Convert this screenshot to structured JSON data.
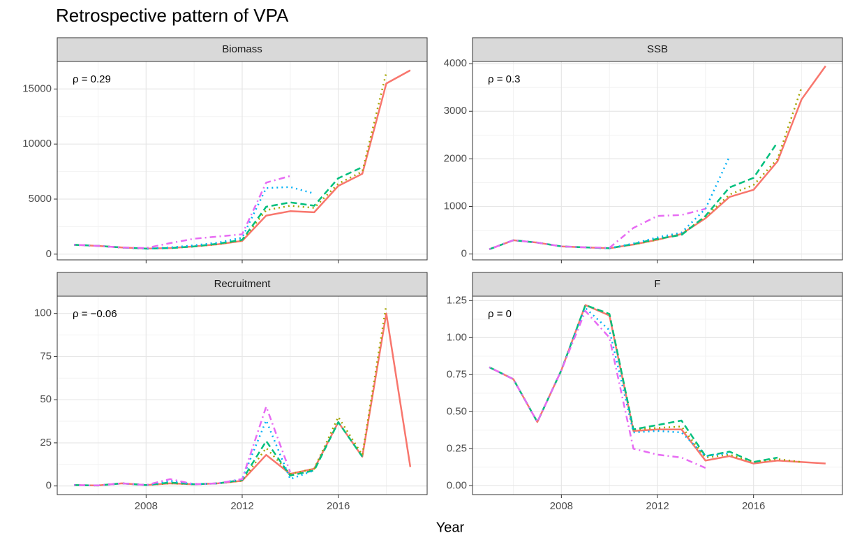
{
  "title": "Retrospective pattern of VPA",
  "xlabel": "Year",
  "chart_data": [
    {
      "type": "line",
      "title": "Biomass",
      "annotation": "ρ = 0.29",
      "x": [
        2005,
        2006,
        2007,
        2008,
        2009,
        2010,
        2011,
        2012,
        2013,
        2014,
        2015,
        2016,
        2017,
        2018,
        2019
      ],
      "xlim": [
        2004.3,
        2019.7
      ],
      "xticks": [
        2008,
        2012,
        2016
      ],
      "ylim": [
        -520,
        17500
      ],
      "yticks": [
        0,
        5000,
        10000,
        15000
      ],
      "series": [
        {
          "color": "#F8766D",
          "linetype": "solid",
          "values": [
            850,
            750,
            600,
            500,
            550,
            700,
            900,
            1200,
            3500,
            3900,
            3800,
            6200,
            7300,
            15500,
            16700
          ]
        },
        {
          "color": "#A3A500",
          "linetype": "dotted",
          "values": [
            850,
            750,
            600,
            500,
            550,
            700,
            900,
            1250,
            4000,
            4400,
            4200,
            6400,
            7500,
            16500,
            null
          ]
        },
        {
          "color": "#00BF7D",
          "linetype": "dashed",
          "values": [
            850,
            750,
            600,
            500,
            550,
            700,
            950,
            1300,
            4300,
            4700,
            4400,
            6900,
            7900,
            null,
            null
          ]
        },
        {
          "color": "#00B0F6",
          "linetype": "dotted",
          "values": [
            850,
            750,
            600,
            500,
            600,
            800,
            1050,
            1500,
            6000,
            6100,
            5500,
            null,
            null,
            null,
            null
          ]
        },
        {
          "color": "#E76BF3",
          "linetype": "dotdash",
          "values": [
            850,
            750,
            600,
            550,
            1000,
            1400,
            1600,
            1800,
            6500,
            7100,
            null,
            null,
            null,
            null,
            null
          ]
        }
      ]
    },
    {
      "type": "line",
      "title": "SSB",
      "annotation": "ρ = 0.3",
      "x": [
        2005,
        2006,
        2007,
        2008,
        2009,
        2010,
        2011,
        2012,
        2013,
        2014,
        2015,
        2016,
        2017,
        2018,
        2019
      ],
      "xlim": [
        2004.3,
        2019.7
      ],
      "xticks": [
        2008,
        2012,
        2016
      ],
      "ylim": [
        -123,
        4046
      ],
      "yticks": [
        0,
        1000,
        2000,
        3000,
        4000
      ],
      "series": [
        {
          "color": "#F8766D",
          "linetype": "solid",
          "values": [
            100,
            290,
            240,
            160,
            140,
            120,
            200,
            300,
            420,
            750,
            1200,
            1350,
            1950,
            3250,
            3950
          ]
        },
        {
          "color": "#A3A500",
          "linetype": "dotted",
          "values": [
            100,
            290,
            240,
            160,
            140,
            120,
            200,
            300,
            430,
            780,
            1250,
            1450,
            2000,
            3500,
            null
          ]
        },
        {
          "color": "#00BF7D",
          "linetype": "dashed",
          "values": [
            100,
            290,
            240,
            160,
            140,
            120,
            210,
            320,
            400,
            800,
            1400,
            1600,
            2350,
            null,
            null
          ]
        },
        {
          "color": "#00B0F6",
          "linetype": "dotted",
          "values": [
            100,
            290,
            240,
            160,
            140,
            120,
            220,
            350,
            450,
            950,
            2050,
            null,
            null,
            null,
            null
          ]
        },
        {
          "color": "#E76BF3",
          "linetype": "dotdash",
          "values": [
            100,
            290,
            240,
            160,
            140,
            130,
            550,
            800,
            820,
            950,
            null,
            null,
            null,
            null,
            null
          ]
        }
      ]
    },
    {
      "type": "line",
      "title": "Recruitment",
      "annotation": "ρ = −0.06",
      "x": [
        2005,
        2006,
        2007,
        2008,
        2009,
        2010,
        2011,
        2012,
        2013,
        2014,
        2015,
        2016,
        2017,
        2018,
        2019
      ],
      "xlim": [
        2004.3,
        2019.7
      ],
      "xticks": [
        2008,
        2012,
        2016
      ],
      "ylim": [
        -5,
        110
      ],
      "yticks": [
        0,
        25,
        50,
        75,
        100
      ],
      "series": [
        {
          "color": "#F8766D",
          "linetype": "solid",
          "values": [
            0.5,
            0.3,
            1.5,
            0.5,
            1.5,
            1,
            1.5,
            3,
            18,
            7,
            10,
            37,
            17,
            100,
            11
          ]
        },
        {
          "color": "#A3A500",
          "linetype": "dotted",
          "values": [
            0.5,
            0.3,
            1.5,
            0.5,
            1.5,
            1,
            1.5,
            3,
            22,
            7,
            10,
            40,
            18,
            105,
            null
          ]
        },
        {
          "color": "#00BF7D",
          "linetype": "dashed",
          "values": [
            0.5,
            0.3,
            1.5,
            0.5,
            2,
            1,
            1.5,
            3.5,
            26,
            6,
            9,
            37,
            17,
            null,
            null
          ]
        },
        {
          "color": "#00B0F6",
          "linetype": "dotted",
          "values": [
            0.5,
            0.3,
            1.5,
            0.5,
            3,
            1,
            1.5,
            4,
            38,
            4,
            9,
            null,
            null,
            null,
            null
          ]
        },
        {
          "color": "#E76BF3",
          "linetype": "dotdash",
          "values": [
            0.5,
            0.3,
            1.5,
            0.5,
            4,
            1,
            1.5,
            4,
            46,
            8,
            null,
            null,
            null,
            null,
            null
          ]
        }
      ]
    },
    {
      "type": "line",
      "title": "F",
      "annotation": "ρ = 0",
      "x": [
        2005,
        2006,
        2007,
        2008,
        2009,
        2010,
        2011,
        2012,
        2013,
        2014,
        2015,
        2016,
        2017,
        2018,
        2019
      ],
      "xlim": [
        2004.3,
        2019.7
      ],
      "xticks": [
        2008,
        2012,
        2016
      ],
      "ylim": [
        -0.06,
        1.28
      ],
      "yticks": [
        {
          "value": 0,
          "label": "0.00"
        },
        0.25,
        {
          "value": 0.5,
          "label": "0.50"
        },
        0.75,
        {
          "value": 1,
          "label": "1.00"
        },
        1.25
      ],
      "series": [
        {
          "color": "#F8766D",
          "linetype": "solid",
          "values": [
            0.8,
            0.72,
            0.43,
            0.78,
            1.22,
            1.15,
            0.37,
            0.38,
            0.38,
            0.17,
            0.2,
            0.15,
            0.17,
            0.16,
            0.15
          ]
        },
        {
          "color": "#A3A500",
          "linetype": "dotted",
          "values": [
            0.8,
            0.72,
            0.43,
            0.78,
            1.22,
            1.16,
            0.38,
            0.39,
            0.4,
            0.19,
            0.21,
            0.16,
            0.18,
            0.16,
            null
          ]
        },
        {
          "color": "#00BF7D",
          "linetype": "dashed",
          "values": [
            0.8,
            0.72,
            0.43,
            0.78,
            1.22,
            1.16,
            0.38,
            0.41,
            0.44,
            0.2,
            0.23,
            0.16,
            0.19,
            null,
            null
          ]
        },
        {
          "color": "#00B0F6",
          "linetype": "dotted",
          "values": [
            0.8,
            0.72,
            0.43,
            0.78,
            1.2,
            1.05,
            0.36,
            0.37,
            0.36,
            0.2,
            0.22,
            null,
            null,
            null,
            null
          ]
        },
        {
          "color": "#E76BF3",
          "linetype": "dotdash",
          "values": [
            0.8,
            0.72,
            0.43,
            0.78,
            1.18,
            1,
            0.25,
            0.21,
            0.19,
            0.12,
            null,
            null,
            null,
            null,
            null
          ]
        }
      ]
    }
  ]
}
